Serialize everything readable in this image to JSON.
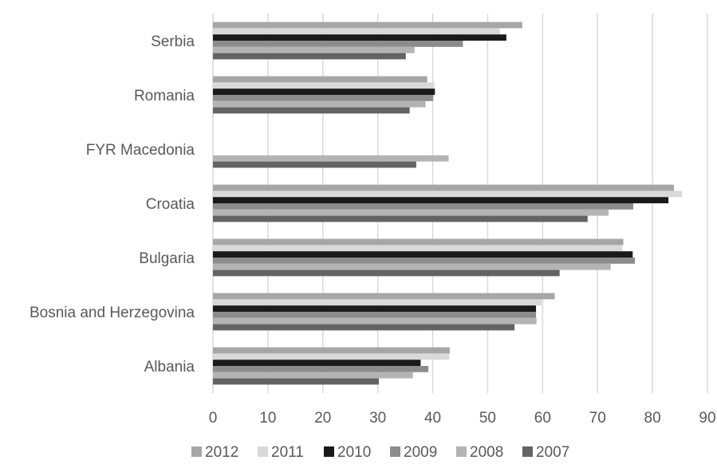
{
  "chart_data": {
    "type": "bar",
    "orientation": "horizontal",
    "categories": [
      "Serbia",
      "Romania",
      "FYR Macedonia",
      "Croatia",
      "Bulgaria",
      "Bosnia and Herzegovina",
      "Albania"
    ],
    "series": [
      {
        "name": "2012",
        "color": "#a6a6a6",
        "values": [
          56.3,
          39.0,
          null,
          83.9,
          74.7,
          62.2,
          43.1
        ]
      },
      {
        "name": "2011",
        "color": "#d9d9d9",
        "values": [
          52.2,
          40.3,
          null,
          85.4,
          74.5,
          59.8,
          43.0
        ]
      },
      {
        "name": "2010",
        "color": "#1a1a1a",
        "values": [
          53.4,
          40.4,
          null,
          82.9,
          76.4,
          58.8,
          37.8
        ]
      },
      {
        "name": "2009",
        "color": "#8c8c8c",
        "values": [
          45.5,
          40.1,
          null,
          76.5,
          76.8,
          58.8,
          39.2
        ]
      },
      {
        "name": "2008",
        "color": "#b4b4b4",
        "values": [
          36.7,
          38.7,
          42.9,
          72.0,
          72.4,
          58.9,
          36.4
        ]
      },
      {
        "name": "2007",
        "color": "#636363",
        "values": [
          35.1,
          35.8,
          37.0,
          68.2,
          63.1,
          54.9,
          30.2
        ]
      }
    ],
    "xlim": [
      0,
      90
    ],
    "xticks": [
      "0",
      "10",
      "20",
      "30",
      "40",
      "50",
      "60",
      "70",
      "80",
      "90"
    ],
    "grid": "vertical",
    "legend": "bottom",
    "title": "",
    "xlabel": "",
    "ylabel": ""
  }
}
